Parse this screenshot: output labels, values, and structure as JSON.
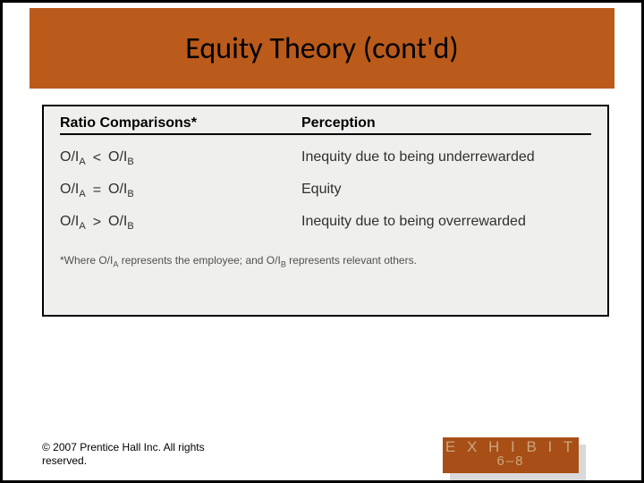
{
  "title": "Equity Theory (cont'd)",
  "colors": {
    "title_band_bg": "#ba5a1b",
    "table_bg": "#efefed",
    "exhibit_bg": "#a74f16",
    "exhibit_text": "#cba67f",
    "exhibit_shadow": "#d9d9d9",
    "slide_border": "#000000"
  },
  "table": {
    "headers": {
      "col1": "Ratio Comparisons*",
      "col2": "Perception"
    },
    "rows": [
      {
        "left_a": "O/I",
        "sub_a": "A",
        "rel": "<",
        "left_b": "O/I",
        "sub_b": "B",
        "perception": "Inequity due to being underrewarded"
      },
      {
        "left_a": "O/I",
        "sub_a": "A",
        "rel": "=",
        "left_b": "O/I",
        "sub_b": "B",
        "perception": "Equity"
      },
      {
        "left_a": "O/I",
        "sub_a": "A",
        "rel": ">",
        "left_b": "O/I",
        "sub_b": "B",
        "perception": "Inequity due to being overrewarded"
      }
    ],
    "footnote_prefix": "*Where O/I",
    "footnote_sub1": "A",
    "footnote_mid": " represents the employee; and O/I",
    "footnote_sub2": "B",
    "footnote_suffix": " represents relevant others."
  },
  "copyright": "© 2007 Prentice Hall Inc. All rights reserved.",
  "exhibit": {
    "label": "E X H I B I T",
    "number": "6–8"
  }
}
